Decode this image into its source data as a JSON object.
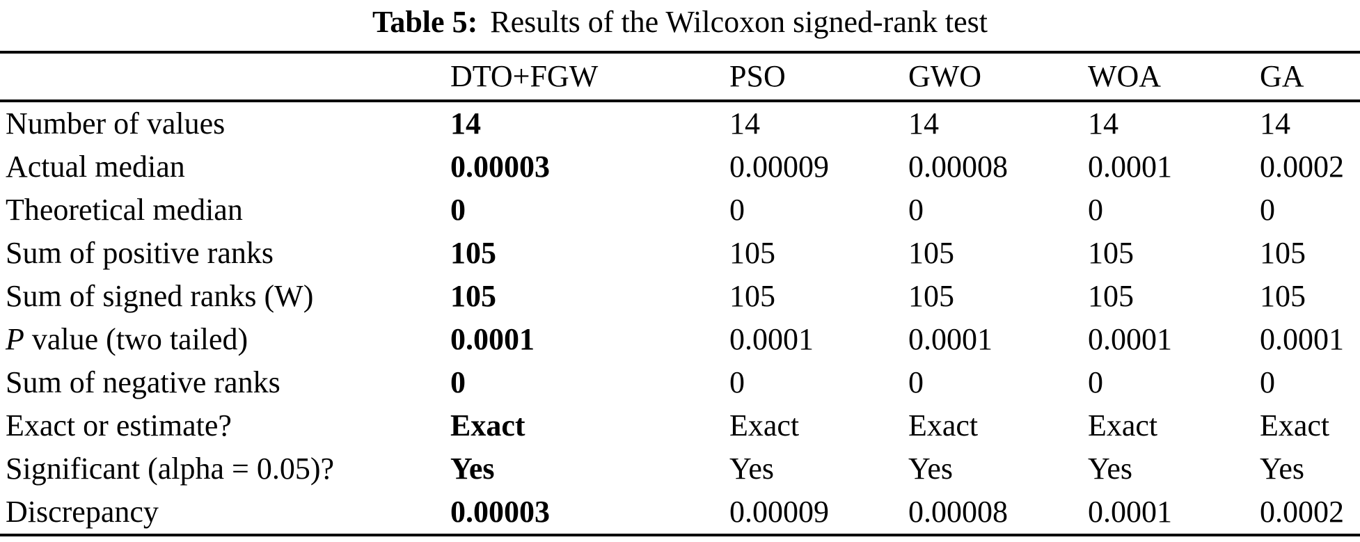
{
  "page": {
    "background_color": "#ffffff",
    "text_color": "#000000"
  },
  "title": {
    "prefix": "Table 5:",
    "text": "Results of the Wilcoxon signed-rank test"
  },
  "table": {
    "columns": [
      {
        "label": ""
      },
      {
        "label": "DTO+FGW"
      },
      {
        "label": "PSO"
      },
      {
        "label": "GWO"
      },
      {
        "label": "WOA"
      },
      {
        "label": "GA"
      }
    ],
    "emphasized_column": "DTO+FGW",
    "rows": [
      {
        "label": "Number of values",
        "values": [
          "14",
          "14",
          "14",
          "14",
          "14"
        ]
      },
      {
        "label": "Actual median",
        "values": [
          "0.00003",
          "0.00009",
          "0.00008",
          "0.0001",
          "0.0002"
        ]
      },
      {
        "label": "Theoretical median",
        "values": [
          "0",
          "0",
          "0",
          "0",
          "0"
        ]
      },
      {
        "label": "Sum of positive ranks",
        "values": [
          "105",
          "105",
          "105",
          "105",
          "105"
        ]
      },
      {
        "label": "Sum of signed ranks (W)",
        "values": [
          "105",
          "105",
          "105",
          "105",
          "105"
        ]
      },
      {
        "label": "P value (two tailed)",
        "label_italic": "P",
        "label_rest": " value (two tailed)",
        "values": [
          "0.0001",
          "0.0001",
          "0.0001",
          "0.0001",
          "0.0001"
        ]
      },
      {
        "label": "Sum of negative ranks",
        "values": [
          "0",
          "0",
          "0",
          "0",
          "0"
        ]
      },
      {
        "label": "Exact or estimate?",
        "values": [
          "Exact",
          "Exact",
          "Exact",
          "Exact",
          "Exact"
        ]
      },
      {
        "label": "Significant (alpha = 0.05)?",
        "values": [
          "Yes",
          "Yes",
          "Yes",
          "Yes",
          "Yes"
        ]
      },
      {
        "label": "Discrepancy",
        "values": [
          "0.00003",
          "0.00009",
          "0.00008",
          "0.0001",
          "0.0002"
        ]
      }
    ]
  }
}
